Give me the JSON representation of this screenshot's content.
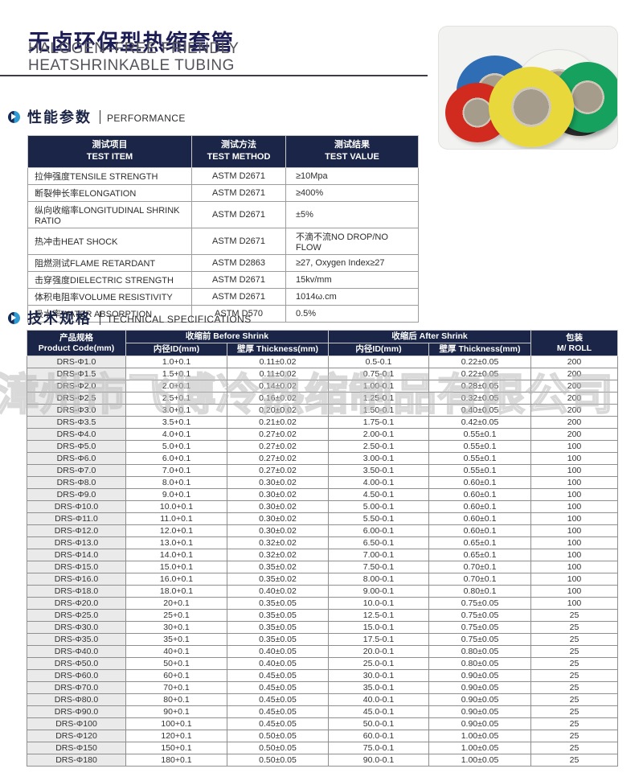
{
  "page": {
    "title_cn": "无卤环保型热缩套管",
    "subtitle_line1": "HALOGEN–FREE FRIENDLY",
    "subtitle_line2": "HEATSHRINKABLE TUBING"
  },
  "colors": {
    "header_navy": "#1a2547",
    "accent_light_blue": "#2f9ad2",
    "shade_column": "#eaeaea",
    "watermark_gray": "#b9b9b9",
    "title_navy": "#1d1d55"
  },
  "product_photo": {
    "description": "six rolls of colored heat shrinkable tubing",
    "core_color": "#a59c8b",
    "rolls": [
      {
        "name": "blue",
        "color": "#2f6db5"
      },
      {
        "name": "white",
        "color": "#f4f4f1"
      },
      {
        "name": "black",
        "color": "#2b2b2b"
      },
      {
        "name": "green",
        "color": "#17a15e"
      },
      {
        "name": "red",
        "color": "#d12a1e"
      },
      {
        "name": "yellow",
        "color": "#e9d83c"
      }
    ]
  },
  "performance": {
    "title_cn": "性能参数",
    "title_en": "PERFORMANCE",
    "columns": [
      {
        "cn": "测试项目",
        "en": "TEST ITEM"
      },
      {
        "cn": "测试方法",
        "en": "TEST METHOD"
      },
      {
        "cn": "测试结果",
        "en": "TEST VALUE"
      }
    ],
    "rows": [
      [
        "拉伸强度TENSILE STRENGTH",
        "ASTM D2671",
        "≥10Mpa"
      ],
      [
        "断裂伸长率ELONGATION",
        "ASTM D2671",
        "≥400%"
      ],
      [
        "纵向收缩率LONGITUDINAL SHRINK RATIO",
        "ASTM D2671",
        "±5%"
      ],
      [
        "热冲击HEAT SHOCK",
        "ASTM D2671",
        "不滴不流NO DROP/NO FLOW"
      ],
      [
        "阻燃测试FLAME RETARDANT",
        "ASTM D2863",
        "≥27, Oxygen Index≥27"
      ],
      [
        "击穿强度DIELECTRIC STRENGTH",
        "ASTM D2671",
        "15kv/mm"
      ],
      [
        "体积电阻率VOLUME RESISTIVITY",
        "ASTM D2671",
        "1014ω.cm"
      ],
      [
        "吸水率WATER ABSORPTION",
        "ASTM D570",
        "0.5%"
      ]
    ]
  },
  "technical": {
    "title_cn": "技术规格",
    "title_en": "TECHNICAL SPECIFICATIONS",
    "header": {
      "product_cn": "产品规格",
      "product_en": "Product Code(mm)",
      "before_group": "收缩前 Before Shrink",
      "after_group": "收缩后 After Shrink",
      "id_label": "内径ID(mm)",
      "thickness_label": "壁厚 Thickness(mm)",
      "pack_cn": "包装",
      "pack_en": "M/ ROLL"
    },
    "rows": [
      [
        "DRS-Φ1.0",
        "1.0+0.1",
        "0.11±0.02",
        "0.5-0.1",
        "0.22±0.05",
        "200"
      ],
      [
        "DRS-Φ1.5",
        "1.5+0.1",
        "0.11±0.02",
        "0.75-0.1",
        "0.22±0.05",
        "200"
      ],
      [
        "DRS-Φ2.0",
        "2.0+0.1",
        "0.14±0.02",
        "1.00-0.1",
        "0.28±0.05",
        "200"
      ],
      [
        "DRS-Φ2.5",
        "2.5+0.1",
        "0.16±0.02",
        "1.25-0.1",
        "0.32±0.05",
        "200"
      ],
      [
        "DRS-Φ3.0",
        "3.0+0.1",
        "0.20±0.02",
        "1.50-0.1",
        "0.40±0.05",
        "200"
      ],
      [
        "DRS-Φ3.5",
        "3.5+0.1",
        "0.21±0.02",
        "1.75-0.1",
        "0.42±0.05",
        "200"
      ],
      [
        "DRS-Φ4.0",
        "4.0+0.1",
        "0.27±0.02",
        "2.00-0.1",
        "0.55±0.1",
        "200"
      ],
      [
        "DRS-Φ5.0",
        "5.0+0.1",
        "0.27±0.02",
        "2.50-0.1",
        "0.55±0.1",
        "100"
      ],
      [
        "DRS-Φ6.0",
        "6.0+0.1",
        "0.27±0.02",
        "3.00-0.1",
        "0.55±0.1",
        "100"
      ],
      [
        "DRS-Φ7.0",
        "7.0+0.1",
        "0.27±0.02",
        "3.50-0.1",
        "0.55±0.1",
        "100"
      ],
      [
        "DRS-Φ8.0",
        "8.0+0.1",
        "0.30±0.02",
        "4.00-0.1",
        "0.60±0.1",
        "100"
      ],
      [
        "DRS-Φ9.0",
        "9.0+0.1",
        "0.30±0.02",
        "4.50-0.1",
        "0.60±0.1",
        "100"
      ],
      [
        "DRS-Φ10.0",
        "10.0+0.1",
        "0.30±0.02",
        "5.00-0.1",
        "0.60±0.1",
        "100"
      ],
      [
        "DRS-Φ11.0",
        "11.0+0.1",
        "0.30±0.02",
        "5.50-0.1",
        "0.60±0.1",
        "100"
      ],
      [
        "DRS-Φ12.0",
        "12.0+0.1",
        "0.30±0.02",
        "6.00-0.1",
        "0.60±0.1",
        "100"
      ],
      [
        "DRS-Φ13.0",
        "13.0+0.1",
        "0.32±0.02",
        "6.50-0.1",
        "0.65±0.1",
        "100"
      ],
      [
        "DRS-Φ14.0",
        "14.0+0.1",
        "0.32±0.02",
        "7.00-0.1",
        "0.65±0.1",
        "100"
      ],
      [
        "DRS-Φ15.0",
        "15.0+0.1",
        "0.35±0.02",
        "7.50-0.1",
        "0.70±0.1",
        "100"
      ],
      [
        "DRS-Φ16.0",
        "16.0+0.1",
        "0.35±0.02",
        "8.00-0.1",
        "0.70±0.1",
        "100"
      ],
      [
        "DRS-Φ18.0",
        "18.0+0.1",
        "0.40±0.02",
        "9.00-0.1",
        "0.80±0.1",
        "100"
      ],
      [
        "DRS-Φ20.0",
        "20+0.1",
        "0.35±0.05",
        "10.0-0.1",
        "0.75±0.05",
        "100"
      ],
      [
        "DRS-Φ25.0",
        "25+0.1",
        "0.35±0.05",
        "12.5-0.1",
        "0.75±0.05",
        "25"
      ],
      [
        "DRS-Φ30.0",
        "30+0.1",
        "0.35±0.05",
        "15.0-0.1",
        "0.75±0.05",
        "25"
      ],
      [
        "DRS-Φ35.0",
        "35+0.1",
        "0.35±0.05",
        "17.5-0.1",
        "0.75±0.05",
        "25"
      ],
      [
        "DRS-Φ40.0",
        "40+0.1",
        "0.40±0.05",
        "20.0-0.1",
        "0.80±0.05",
        "25"
      ],
      [
        "DRS-Φ50.0",
        "50+0.1",
        "0.40±0.05",
        "25.0-0.1",
        "0.80±0.05",
        "25"
      ],
      [
        "DRS-Φ60.0",
        "60+0.1",
        "0.45±0.05",
        "30.0-0.1",
        "0.90±0.05",
        "25"
      ],
      [
        "DRS-Φ70.0",
        "70+0.1",
        "0.45±0.05",
        "35.0-0.1",
        "0.90±0.05",
        "25"
      ],
      [
        "DRS-Φ80.0",
        "80+0.1",
        "0.45±0.05",
        "40.0-0.1",
        "0.90±0.05",
        "25"
      ],
      [
        "DRS-Φ90.0",
        "90+0.1",
        "0.45±0.05",
        "45.0-0.1",
        "0.90±0.05",
        "25"
      ],
      [
        "DRS-Φ100",
        "100+0.1",
        "0.45±0.05",
        "50.0-0.1",
        "0.90±0.05",
        "25"
      ],
      [
        "DRS-Φ120",
        "120+0.1",
        "0.50±0.05",
        "60.0-0.1",
        "1.00±0.05",
        "25"
      ],
      [
        "DRS-Φ150",
        "150+0.1",
        "0.50±0.05",
        "75.0-0.1",
        "1.00±0.05",
        "25"
      ],
      [
        "DRS-Φ180",
        "180+0.1",
        "0.50±0.05",
        "90.0-0.1",
        "1.00±0.05",
        "25"
      ]
    ]
  },
  "watermark": "漳州市飞博冷热缩制品有限公司"
}
